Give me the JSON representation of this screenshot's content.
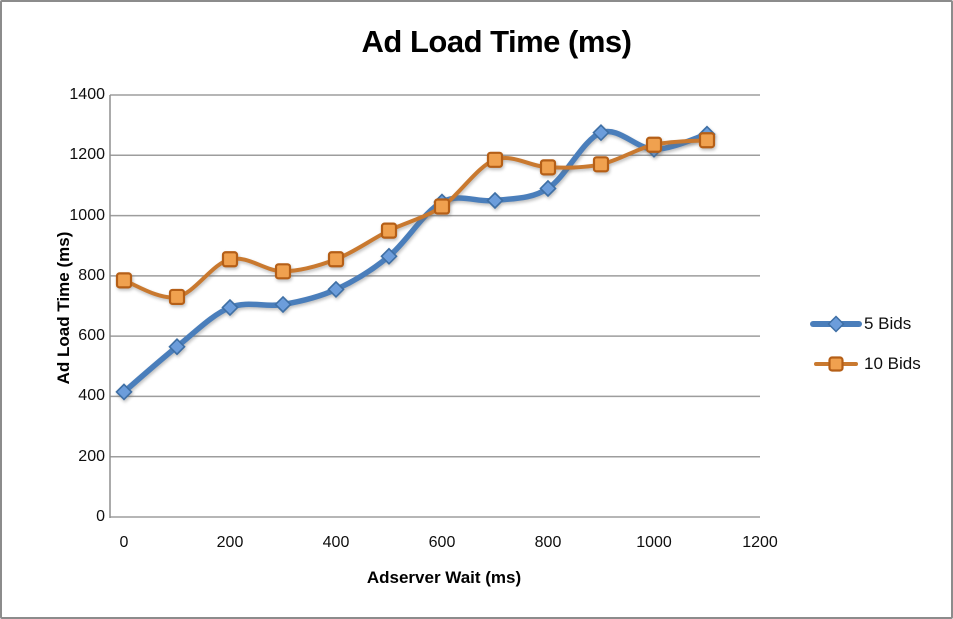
{
  "chart_data": {
    "type": "line",
    "title": "Ad Load Time (ms)",
    "xlabel": "Adserver Wait (ms)",
    "ylabel": "Ad Load Time (ms)",
    "x": [
      0,
      100,
      200,
      300,
      400,
      500,
      600,
      700,
      800,
      900,
      1000,
      1100
    ],
    "series": [
      {
        "name": "5 Bids",
        "marker": "diamond",
        "line_color": "#4a7ebb",
        "marker_fill": "#6c9ddb",
        "marker_stroke": "#3e6fa5",
        "values": [
          415,
          565,
          695,
          705,
          755,
          865,
          1045,
          1050,
          1090,
          1275,
          1220,
          1270
        ]
      },
      {
        "name": "10 Bids",
        "marker": "square",
        "line_color": "#c9792f",
        "marker_fill": "#f0a14f",
        "marker_stroke": "#b55f17",
        "values": [
          785,
          730,
          855,
          815,
          855,
          950,
          1030,
          1185,
          1160,
          1170,
          1235,
          1250
        ]
      }
    ],
    "x_ticks": [
      "0",
      "200",
      "400",
      "600",
      "800",
      "1000",
      "1200"
    ],
    "x_tick_values": [
      0,
      200,
      400,
      600,
      800,
      1000,
      1200
    ],
    "y_ticks": [
      "0",
      "200",
      "400",
      "600",
      "800",
      "1000",
      "1200",
      "1400"
    ],
    "y_tick_values": [
      0,
      200,
      400,
      600,
      800,
      1000,
      1200,
      1400
    ],
    "xlim": [
      0,
      1200
    ],
    "ylim": [
      0,
      1400
    ],
    "grid": true,
    "smooth": true,
    "legend_position": "right"
  },
  "colors": {
    "background": "#ffffff",
    "frame_border": "#8c8c8c",
    "gridline": "#9d9d9d",
    "axis_line": "#8f8f8f",
    "text": "#0f0f0f"
  }
}
